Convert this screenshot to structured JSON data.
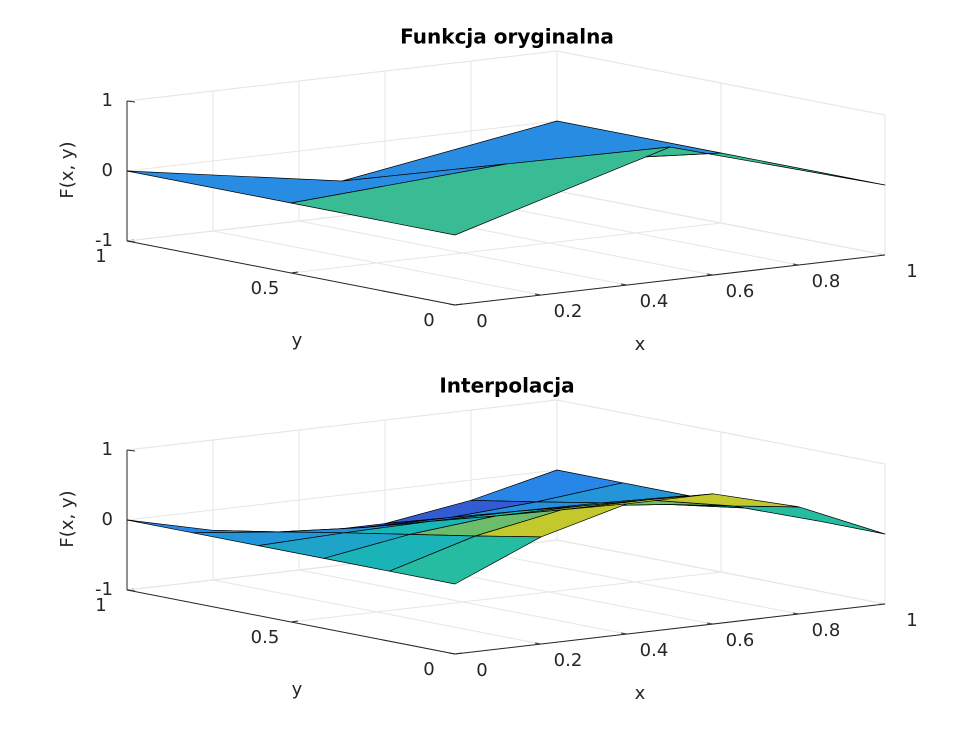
{
  "chart_data": [
    {
      "type": "surface",
      "title": "Funkcja oryginalna",
      "xlabel": "x",
      "ylabel": "y",
      "zlabel": "F(x, y)",
      "x": [
        0,
        0.5,
        1
      ],
      "y": [
        0,
        0.5,
        1
      ],
      "z": [
        [
          0,
          0.9,
          0
        ],
        [
          0,
          0.2,
          0
        ],
        [
          0,
          -0.5,
          0
        ]
      ],
      "xlim": [
        0,
        1
      ],
      "ylim": [
        0,
        1
      ],
      "zlim": [
        -1,
        1
      ],
      "xticks": [
        0,
        0.2,
        0.4,
        0.6,
        0.8,
        1
      ],
      "yticks": [
        0,
        0.5,
        1
      ],
      "zticks": [
        -1,
        0,
        1
      ],
      "grid": true,
      "colormap": "parula"
    },
    {
      "type": "surface",
      "title": "Interpolacja",
      "xlabel": "x",
      "ylabel": "y",
      "zlabel": "F(x, y)",
      "x": [
        0,
        0.2,
        0.4,
        0.6,
        0.8,
        1
      ],
      "y": [
        0,
        0.2,
        0.4,
        0.6,
        0.8,
        1
      ],
      "z": [
        [
          0,
          0.53,
          0.86,
          0.86,
          0.53,
          0
        ],
        [
          0,
          0.36,
          0.59,
          0.59,
          0.36,
          0
        ],
        [
          0,
          0.2,
          0.32,
          0.32,
          0.2,
          0
        ],
        [
          0,
          0.04,
          0.06,
          0.06,
          0.04,
          0
        ],
        [
          0,
          -0.13,
          -0.21,
          -0.21,
          -0.13,
          0
        ],
        [
          0,
          -0.29,
          -0.48,
          -0.48,
          -0.29,
          0
        ]
      ],
      "xlim": [
        0,
        1
      ],
      "ylim": [
        0,
        1
      ],
      "zlim": [
        -1,
        1
      ],
      "xticks": [
        0,
        0.2,
        0.4,
        0.6,
        0.8,
        1
      ],
      "yticks": [
        0,
        0.5,
        1
      ],
      "zticks": [
        -1,
        0,
        1
      ],
      "grid": true,
      "colormap": "parula"
    }
  ]
}
